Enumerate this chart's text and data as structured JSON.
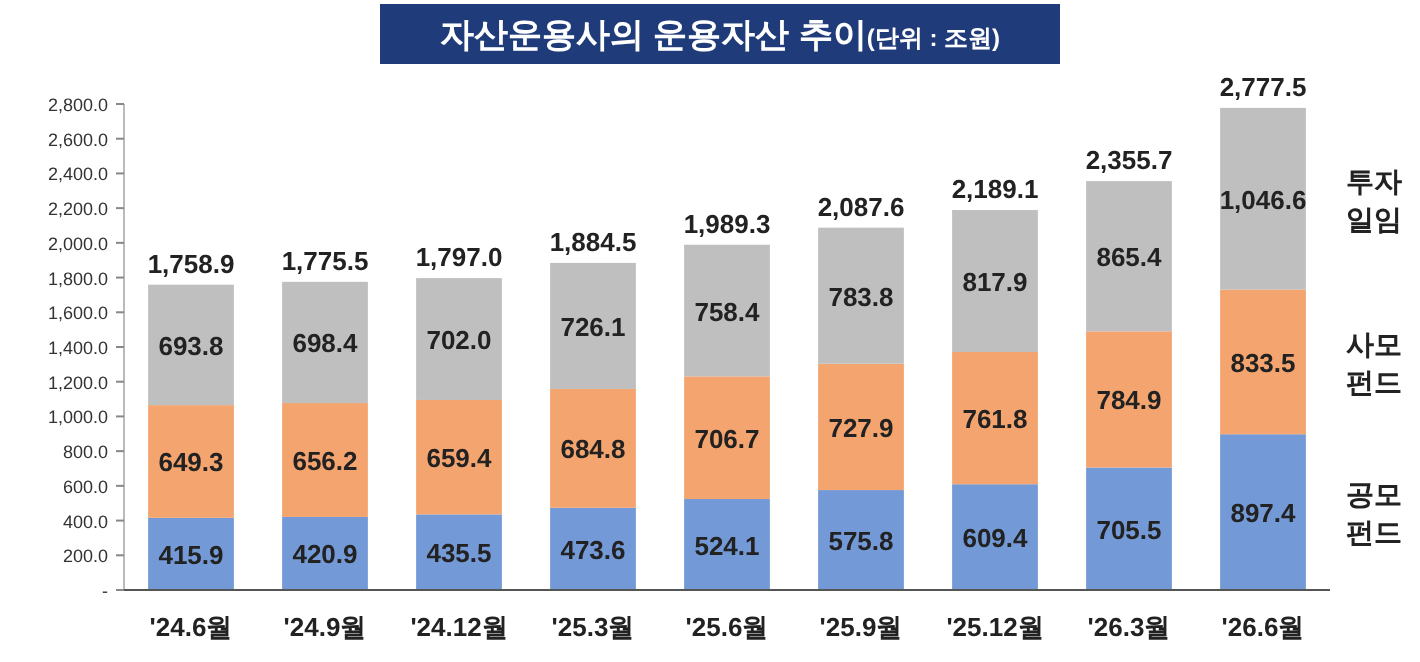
{
  "chart_data": {
    "type": "bar",
    "title": "자산운용사의 운용자산 추이",
    "subtitle": "(단위 : 조원)",
    "categories": [
      "'24.6월",
      "'24.9월",
      "'24.12월",
      "'25.3월",
      "'25.6월",
      "'25.9월",
      "'25.12월",
      "'26.3월",
      "'26.6월"
    ],
    "stacked": true,
    "grid": false,
    "series": [
      {
        "name": "공모 펀드",
        "color": "#7399d6",
        "values": [
          415.9,
          420.9,
          435.5,
          473.6,
          524.1,
          575.8,
          609.4,
          705.5,
          897.4
        ],
        "value_labels": [
          "415.9",
          "420.9",
          "435.5",
          "473.6",
          "524.1",
          "575.8",
          "609.4",
          "705.5",
          "897.4"
        ]
      },
      {
        "name": "사모 펀드",
        "color": "#f4a46e",
        "values": [
          649.3,
          656.2,
          659.4,
          684.8,
          706.7,
          727.9,
          761.8,
          784.9,
          833.5
        ],
        "value_labels": [
          "649.3",
          "656.2",
          "659.4",
          "684.8",
          "706.7",
          "727.9",
          "761.8",
          "784.9",
          "833.5"
        ]
      },
      {
        "name": "투자 일임",
        "color": "#bfbfbf",
        "values": [
          693.8,
          698.4,
          702.0,
          726.1,
          758.4,
          783.8,
          817.9,
          865.4,
          1046.6
        ],
        "value_labels": [
          "693.8",
          "698.4",
          "702.0",
          "726.1",
          "758.4",
          "783.8",
          "817.9",
          "865.4",
          "1,046.6"
        ]
      }
    ],
    "totals": [
      "1,758.9",
      "1,775.5",
      "1,797.0",
      "1,884.5",
      "1,989.3",
      "2,087.6",
      "2,189.1",
      "2,355.7",
      "2,777.5"
    ],
    "ylim": [
      0,
      2800
    ],
    "yticks": [
      {
        "value": 0,
        "label": "-"
      },
      {
        "value": 200,
        "label": "200.0"
      },
      {
        "value": 400,
        "label": "400.0"
      },
      {
        "value": 600,
        "label": "600.0"
      },
      {
        "value": 800,
        "label": "800.0"
      },
      {
        "value": 1000,
        "label": "1,000.0"
      },
      {
        "value": 1200,
        "label": "1,200.0"
      },
      {
        "value": 1400,
        "label": "1,400.0"
      },
      {
        "value": 1600,
        "label": "1,600.0"
      },
      {
        "value": 1800,
        "label": "1,800.0"
      },
      {
        "value": 2000,
        "label": "2,000.0"
      },
      {
        "value": 2200,
        "label": "2,200.0"
      },
      {
        "value": 2400,
        "label": "2,400.0"
      },
      {
        "value": 2600,
        "label": "2,600.0"
      },
      {
        "value": 2800,
        "label": "2,800.0"
      }
    ]
  }
}
